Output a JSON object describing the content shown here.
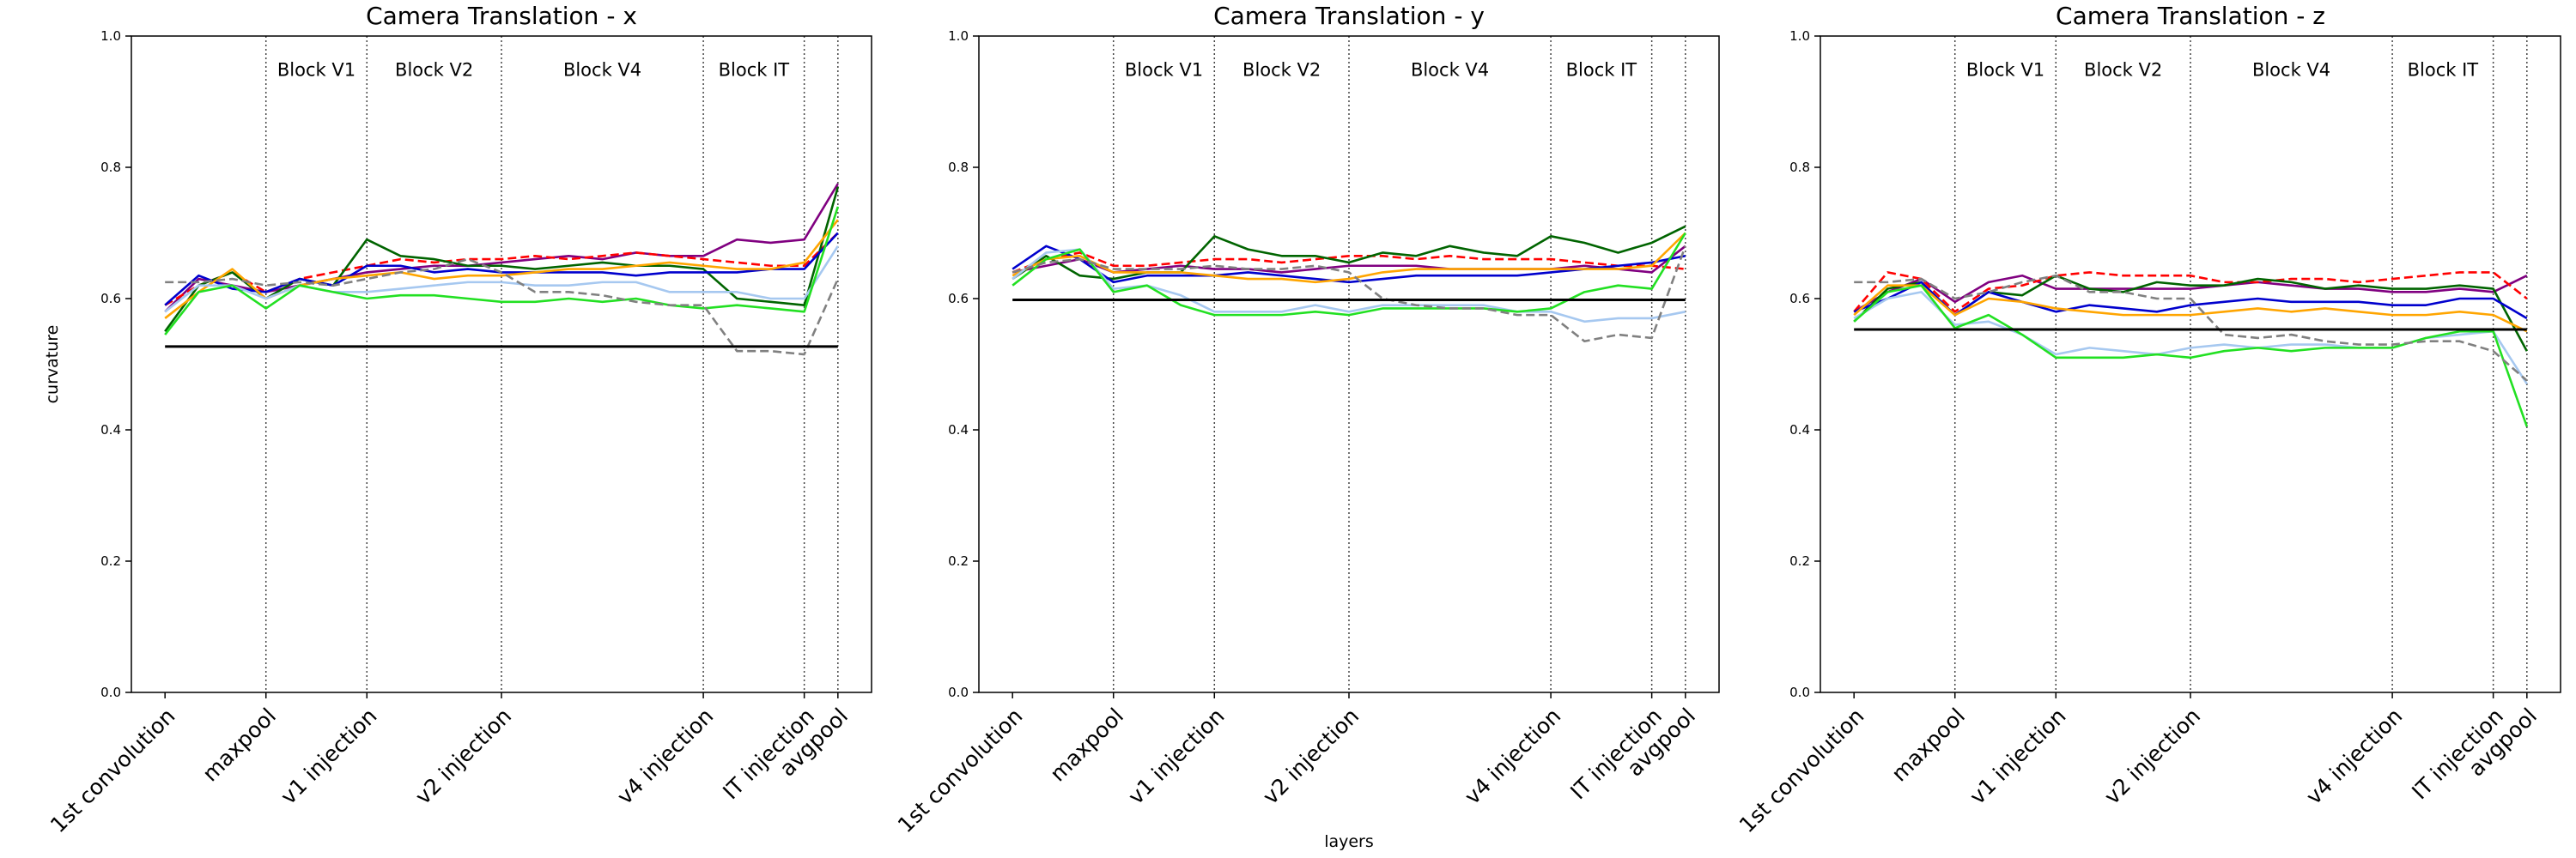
{
  "chart_data": [
    {
      "type": "line",
      "title": "Camera Translation - x",
      "ylabel": "curvature",
      "x": [
        0,
        1,
        2,
        3,
        4,
        5,
        6,
        7,
        8,
        9,
        10,
        11,
        12,
        13,
        14,
        15,
        16,
        17,
        18,
        19,
        20
      ],
      "xlim": [
        -1,
        21
      ],
      "ylim": [
        0,
        1
      ],
      "xticks": [
        {
          "value": 0,
          "label": "1st convolution"
        },
        {
          "value": 3,
          "label": "maxpool"
        },
        {
          "value": 6,
          "label": "v1 injection"
        },
        {
          "value": 10,
          "label": "v2 injection"
        },
        {
          "value": 16,
          "label": "v4 injection"
        },
        {
          "value": 19,
          "label": "IT injection"
        },
        {
          "value": 20,
          "label": "avgpool"
        }
      ],
      "yticks": [
        {
          "value": 0,
          "label": "0.0"
        },
        0.2,
        0.4,
        0.6,
        0.8,
        {
          "value": 1,
          "label": "1.0"
        }
      ],
      "vlines": [
        3,
        6,
        10,
        16,
        19,
        20
      ],
      "annotations": [
        {
          "text": "Block V1",
          "x": 4.5,
          "y": 0.95
        },
        {
          "text": "Block V2",
          "x": 8,
          "y": 0.95
        },
        {
          "text": "Block V4",
          "x": 13,
          "y": 0.95
        },
        {
          "text": "Block IT",
          "x": 17.5,
          "y": 0.95
        }
      ],
      "hline": {
        "value": 0.527,
        "color": "#000000"
      },
      "series": [
        {
          "color": "#800080",
          "linestyle": "solid",
          "values": [
            0.58,
            0.63,
            0.62,
            0.61,
            0.62,
            0.63,
            0.64,
            0.645,
            0.65,
            0.65,
            0.655,
            0.66,
            0.665,
            0.66,
            0.67,
            0.665,
            0.665,
            0.69,
            0.685,
            0.69,
            0.775
          ]
        },
        {
          "color": "#ff0000",
          "linestyle": "dashed",
          "values": [
            0.59,
            0.62,
            0.64,
            0.61,
            0.63,
            0.64,
            0.65,
            0.66,
            0.655,
            0.66,
            0.66,
            0.665,
            0.66,
            0.665,
            0.67,
            0.665,
            0.66,
            0.655,
            0.65,
            0.65,
            0.7
          ]
        },
        {
          "color": "#006400",
          "linestyle": "solid",
          "values": [
            0.55,
            0.62,
            0.64,
            0.6,
            0.63,
            0.62,
            0.69,
            0.665,
            0.66,
            0.65,
            0.65,
            0.645,
            0.65,
            0.655,
            0.65,
            0.65,
            0.645,
            0.6,
            0.595,
            0.59,
            0.77
          ]
        },
        {
          "color": "#0000cd",
          "linestyle": "solid",
          "values": [
            0.59,
            0.635,
            0.615,
            0.61,
            0.63,
            0.62,
            0.65,
            0.65,
            0.64,
            0.645,
            0.64,
            0.64,
            0.64,
            0.64,
            0.635,
            0.64,
            0.64,
            0.64,
            0.645,
            0.645,
            0.7
          ]
        },
        {
          "color": "#ffa500",
          "linestyle": "solid",
          "values": [
            0.57,
            0.61,
            0.645,
            0.6,
            0.62,
            0.63,
            0.635,
            0.64,
            0.63,
            0.635,
            0.635,
            0.64,
            0.645,
            0.645,
            0.65,
            0.655,
            0.65,
            0.645,
            0.645,
            0.655,
            0.72
          ]
        },
        {
          "color": "#a6c8f0",
          "linestyle": "solid",
          "values": [
            0.58,
            0.62,
            0.62,
            0.6,
            0.62,
            0.61,
            0.61,
            0.615,
            0.62,
            0.625,
            0.625,
            0.62,
            0.62,
            0.625,
            0.625,
            0.61,
            0.61,
            0.61,
            0.6,
            0.6,
            0.68
          ]
        },
        {
          "color": "#22e022",
          "linestyle": "solid",
          "values": [
            0.545,
            0.61,
            0.62,
            0.585,
            0.62,
            0.61,
            0.6,
            0.605,
            0.605,
            0.6,
            0.595,
            0.595,
            0.6,
            0.595,
            0.6,
            0.59,
            0.585,
            0.59,
            0.585,
            0.58,
            0.74
          ]
        },
        {
          "color": "#808080",
          "linestyle": "dashed",
          "values": [
            0.625,
            0.625,
            0.63,
            0.62,
            0.625,
            0.62,
            0.63,
            0.64,
            0.645,
            0.66,
            0.64,
            0.61,
            0.61,
            0.605,
            0.595,
            0.59,
            0.59,
            0.52,
            0.52,
            0.515,
            0.63
          ]
        }
      ]
    },
    {
      "type": "line",
      "title": "Camera Translation - y",
      "xlabel": "layers",
      "x": [
        0,
        1,
        2,
        3,
        4,
        5,
        6,
        7,
        8,
        9,
        10,
        11,
        12,
        13,
        14,
        15,
        16,
        17,
        18,
        19,
        20
      ],
      "xlim": [
        -1,
        21
      ],
      "ylim": [
        0,
        1
      ],
      "xticks": [
        {
          "value": 0,
          "label": "1st convolution"
        },
        {
          "value": 3,
          "label": "maxpool"
        },
        {
          "value": 6,
          "label": "v1 injection"
        },
        {
          "value": 10,
          "label": "v2 injection"
        },
        {
          "value": 16,
          "label": "v4 injection"
        },
        {
          "value": 19,
          "label": "IT injection"
        },
        {
          "value": 20,
          "label": "avgpool"
        }
      ],
      "yticks": [
        {
          "value": 0,
          "label": "0.0"
        },
        0.2,
        0.4,
        0.6,
        0.8,
        {
          "value": 1,
          "label": "1.0"
        }
      ],
      "vlines": [
        3,
        6,
        10,
        16,
        19,
        20
      ],
      "annotations": [
        {
          "text": "Block V1",
          "x": 4.5,
          "y": 0.95
        },
        {
          "text": "Block V2",
          "x": 8,
          "y": 0.95
        },
        {
          "text": "Block V4",
          "x": 13,
          "y": 0.95
        },
        {
          "text": "Block IT",
          "x": 17.5,
          "y": 0.95
        }
      ],
      "hline": {
        "value": 0.598,
        "color": "#000000"
      },
      "series": [
        {
          "color": "#800080",
          "linestyle": "solid",
          "values": [
            0.64,
            0.65,
            0.66,
            0.64,
            0.645,
            0.65,
            0.645,
            0.645,
            0.64,
            0.645,
            0.65,
            0.65,
            0.65,
            0.645,
            0.645,
            0.645,
            0.645,
            0.65,
            0.645,
            0.64,
            0.68
          ]
        },
        {
          "color": "#ff0000",
          "linestyle": "dashed",
          "values": [
            0.64,
            0.66,
            0.67,
            0.65,
            0.65,
            0.655,
            0.66,
            0.66,
            0.655,
            0.66,
            0.665,
            0.665,
            0.66,
            0.665,
            0.66,
            0.66,
            0.66,
            0.655,
            0.65,
            0.65,
            0.645
          ]
        },
        {
          "color": "#006400",
          "linestyle": "solid",
          "values": [
            0.63,
            0.665,
            0.635,
            0.63,
            0.64,
            0.64,
            0.695,
            0.675,
            0.665,
            0.665,
            0.655,
            0.67,
            0.665,
            0.68,
            0.67,
            0.665,
            0.695,
            0.685,
            0.67,
            0.685,
            0.71
          ]
        },
        {
          "color": "#0000cd",
          "linestyle": "solid",
          "values": [
            0.645,
            0.68,
            0.66,
            0.625,
            0.635,
            0.635,
            0.635,
            0.64,
            0.635,
            0.63,
            0.625,
            0.63,
            0.635,
            0.635,
            0.635,
            0.635,
            0.64,
            0.645,
            0.65,
            0.655,
            0.665
          ]
        },
        {
          "color": "#ffa500",
          "linestyle": "solid",
          "values": [
            0.635,
            0.66,
            0.665,
            0.64,
            0.64,
            0.64,
            0.635,
            0.63,
            0.63,
            0.625,
            0.63,
            0.64,
            0.645,
            0.645,
            0.645,
            0.645,
            0.645,
            0.645,
            0.645,
            0.65,
            0.7
          ]
        },
        {
          "color": "#a6c8f0",
          "linestyle": "solid",
          "values": [
            0.63,
            0.67,
            0.675,
            0.615,
            0.62,
            0.605,
            0.58,
            0.58,
            0.58,
            0.59,
            0.58,
            0.59,
            0.59,
            0.59,
            0.59,
            0.58,
            0.58,
            0.565,
            0.57,
            0.57,
            0.58
          ]
        },
        {
          "color": "#22e022",
          "linestyle": "solid",
          "values": [
            0.62,
            0.66,
            0.675,
            0.61,
            0.62,
            0.59,
            0.575,
            0.575,
            0.575,
            0.58,
            0.575,
            0.585,
            0.585,
            0.585,
            0.585,
            0.58,
            0.585,
            0.61,
            0.62,
            0.615,
            0.7
          ]
        },
        {
          "color": "#808080",
          "linestyle": "dashed",
          "values": [
            0.64,
            0.655,
            0.66,
            0.645,
            0.645,
            0.645,
            0.65,
            0.645,
            0.645,
            0.65,
            0.64,
            0.6,
            0.59,
            0.585,
            0.585,
            0.575,
            0.575,
            0.535,
            0.545,
            0.54,
            0.68
          ]
        }
      ]
    },
    {
      "type": "line",
      "title": "Camera Translation - z",
      "x": [
        0,
        1,
        2,
        3,
        4,
        5,
        6,
        7,
        8,
        9,
        10,
        11,
        12,
        13,
        14,
        15,
        16,
        17,
        18,
        19,
        20
      ],
      "xlim": [
        -1,
        21
      ],
      "ylim": [
        0,
        1
      ],
      "xticks": [
        {
          "value": 0,
          "label": "1st convolution"
        },
        {
          "value": 3,
          "label": "maxpool"
        },
        {
          "value": 6,
          "label": "v1 injection"
        },
        {
          "value": 10,
          "label": "v2 injection"
        },
        {
          "value": 16,
          "label": "v4 injection"
        },
        {
          "value": 19,
          "label": "IT injection"
        },
        {
          "value": 20,
          "label": "avgpool"
        }
      ],
      "yticks": [
        {
          "value": 0,
          "label": "0.0"
        },
        0.2,
        0.4,
        0.6,
        0.8,
        {
          "value": 1,
          "label": "1.0"
        }
      ],
      "vlines": [
        3,
        6,
        10,
        16,
        19,
        20
      ],
      "annotations": [
        {
          "text": "Block V1",
          "x": 4.5,
          "y": 0.95
        },
        {
          "text": "Block V2",
          "x": 8,
          "y": 0.95
        },
        {
          "text": "Block V4",
          "x": 13,
          "y": 0.95
        },
        {
          "text": "Block IT",
          "x": 17.5,
          "y": 0.95
        }
      ],
      "hline": {
        "value": 0.553,
        "color": "#000000"
      },
      "series": [
        {
          "color": "#800080",
          "linestyle": "solid",
          "values": [
            0.58,
            0.61,
            0.63,
            0.595,
            0.625,
            0.635,
            0.615,
            0.615,
            0.615,
            0.615,
            0.615,
            0.62,
            0.625,
            0.62,
            0.615,
            0.615,
            0.61,
            0.61,
            0.615,
            0.61,
            0.635
          ]
        },
        {
          "color": "#ff0000",
          "linestyle": "dashed",
          "values": [
            0.58,
            0.64,
            0.63,
            0.58,
            0.615,
            0.62,
            0.635,
            0.64,
            0.635,
            0.635,
            0.635,
            0.625,
            0.625,
            0.63,
            0.63,
            0.625,
            0.63,
            0.635,
            0.64,
            0.64,
            0.6
          ]
        },
        {
          "color": "#006400",
          "linestyle": "solid",
          "values": [
            0.565,
            0.615,
            0.625,
            0.575,
            0.61,
            0.605,
            0.635,
            0.615,
            0.61,
            0.625,
            0.62,
            0.62,
            0.63,
            0.625,
            0.615,
            0.62,
            0.615,
            0.615,
            0.62,
            0.615,
            0.52
          ]
        },
        {
          "color": "#0000cd",
          "linestyle": "solid",
          "values": [
            0.58,
            0.6,
            0.625,
            0.575,
            0.61,
            0.595,
            0.58,
            0.59,
            0.585,
            0.58,
            0.59,
            0.595,
            0.6,
            0.595,
            0.595,
            0.595,
            0.59,
            0.59,
            0.6,
            0.6,
            0.57
          ]
        },
        {
          "color": "#ffa500",
          "linestyle": "solid",
          "values": [
            0.575,
            0.62,
            0.62,
            0.575,
            0.6,
            0.595,
            0.585,
            0.58,
            0.575,
            0.575,
            0.575,
            0.58,
            0.585,
            0.58,
            0.585,
            0.58,
            0.575,
            0.575,
            0.58,
            0.575,
            0.55
          ]
        },
        {
          "color": "#a6c8f0",
          "linestyle": "solid",
          "values": [
            0.57,
            0.6,
            0.61,
            0.56,
            0.565,
            0.545,
            0.515,
            0.525,
            0.52,
            0.515,
            0.525,
            0.53,
            0.525,
            0.53,
            0.53,
            0.525,
            0.525,
            0.54,
            0.545,
            0.55,
            0.47
          ]
        },
        {
          "color": "#22e022",
          "linestyle": "solid",
          "values": [
            0.565,
            0.61,
            0.62,
            0.555,
            0.575,
            0.545,
            0.51,
            0.51,
            0.51,
            0.515,
            0.51,
            0.52,
            0.525,
            0.52,
            0.525,
            0.525,
            0.525,
            0.54,
            0.55,
            0.55,
            0.405
          ]
        },
        {
          "color": "#808080",
          "linestyle": "dashed",
          "values": [
            0.625,
            0.625,
            0.63,
            0.6,
            0.61,
            0.625,
            0.635,
            0.61,
            0.61,
            0.6,
            0.6,
            0.545,
            0.54,
            0.545,
            0.535,
            0.53,
            0.53,
            0.535,
            0.535,
            0.52,
            0.475
          ]
        }
      ]
    }
  ]
}
